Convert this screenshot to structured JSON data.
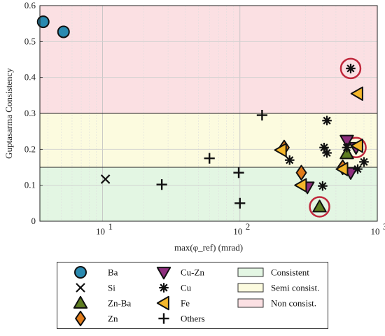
{
  "chart_data": {
    "type": "scatter",
    "xscale": "log",
    "xlim": [
      3.5,
      1000
    ],
    "ylim": [
      0,
      0.6
    ],
    "xlabel": "max(φ_ref) (mrad)",
    "ylabel": "Guptasarma Consistency",
    "x_ticks": [
      {
        "value": 10,
        "base": "10",
        "exp": "1"
      },
      {
        "value": 100,
        "base": "10",
        "exp": "2"
      },
      {
        "value": 1000,
        "base": "10",
        "exp": "3"
      }
    ],
    "y_ticks": [
      {
        "value": 0,
        "label": "0"
      },
      {
        "value": 0.1,
        "label": "0.1"
      },
      {
        "value": 0.2,
        "label": "0.2"
      },
      {
        "value": 0.3,
        "label": "0.3"
      },
      {
        "value": 0.4,
        "label": "0.4"
      },
      {
        "value": 0.5,
        "label": "0.5"
      },
      {
        "value": 0.6,
        "label": "0.6"
      }
    ],
    "grid": true,
    "bands": [
      {
        "name": "Consistent",
        "y0": 0,
        "y1": 0.15,
        "color": "#e3f6e3"
      },
      {
        "name": "Semi consist.",
        "y0": 0.15,
        "y1": 0.3,
        "color": "#fcfbdf"
      },
      {
        "name": "Non consist.",
        "y0": 0.3,
        "y1": 0.6,
        "color": "#fbe0e3"
      }
    ],
    "series": [
      {
        "name": "Ba",
        "marker": "circle",
        "color": "#2a8ab0",
        "points": [
          [
            3.7,
            0.555
          ],
          [
            5.2,
            0.527
          ]
        ]
      },
      {
        "name": "Si",
        "marker": "x",
        "color": "#111111",
        "points": [
          [
            10.5,
            0.117
          ]
        ]
      },
      {
        "name": "Zn-Ba",
        "marker": "triangle-up",
        "color": "#5e7d21",
        "points": [
          [
            380,
            0.04
          ],
          [
            600,
            0.188
          ]
        ]
      },
      {
        "name": "Zn",
        "marker": "diamond",
        "color": "#e07b1a",
        "points": [
          [
            210,
            0.205
          ],
          [
            280,
            0.135
          ],
          [
            560,
            0.15
          ]
        ]
      },
      {
        "name": "Cu-Zn",
        "marker": "triangle-down",
        "color": "#8e2f7e",
        "points": [
          [
            310,
            0.095
          ],
          [
            600,
            0.225
          ],
          [
            640,
            0.135
          ],
          [
            700,
            0.205
          ]
        ]
      },
      {
        "name": "Cu",
        "marker": "asterisk",
        "color": "#111111",
        "points": [
          [
            640,
            0.425
          ],
          [
            430,
            0.28
          ],
          [
            410,
            0.205
          ],
          [
            430,
            0.19
          ],
          [
            230,
            0.17
          ],
          [
            400,
            0.098
          ],
          [
            600,
            0.205
          ],
          [
            720,
            0.145
          ],
          [
            800,
            0.165
          ]
        ]
      },
      {
        "name": "Fe",
        "marker": "triangle-left",
        "color": "#f4b72c",
        "points": [
          [
            720,
            0.355
          ],
          [
            200,
            0.198
          ],
          [
            280,
            0.1
          ],
          [
            560,
            0.145
          ],
          [
            720,
            0.21
          ]
        ]
      },
      {
        "name": "Others",
        "marker": "plus",
        "color": "#111111",
        "points": [
          [
            27,
            0.102
          ],
          [
            60,
            0.175
          ],
          [
            98,
            0.135
          ],
          [
            100,
            0.05
          ],
          [
            145,
            0.295
          ]
        ]
      }
    ],
    "highlighted": [
      [
        640,
        0.425
      ],
      [
        380,
        0.04
      ],
      [
        700,
        0.205
      ]
    ],
    "highlight_color": "#c0283c"
  },
  "legend": {
    "items": [
      {
        "label": "Ba",
        "marker": "circle",
        "color": "#2a8ab0"
      },
      {
        "label": "Si",
        "marker": "x",
        "color": "#111111"
      },
      {
        "label": "Zn-Ba",
        "marker": "triangle-up",
        "color": "#5e7d21"
      },
      {
        "label": "Zn",
        "marker": "diamond",
        "color": "#e07b1a"
      },
      {
        "label": "Cu-Zn",
        "marker": "triangle-down",
        "color": "#8e2f7e"
      },
      {
        "label": "Cu",
        "marker": "asterisk",
        "color": "#111111"
      },
      {
        "label": "Fe",
        "marker": "triangle-left",
        "color": "#f4b72c"
      },
      {
        "label": "Others",
        "marker": "plus",
        "color": "#111111"
      },
      {
        "label": "Consistent",
        "marker": "patch",
        "color": "#e3f6e3"
      },
      {
        "label": "Semi consist.",
        "marker": "patch",
        "color": "#fcfbdf"
      },
      {
        "label": "Non consist.",
        "marker": "patch",
        "color": "#fbe0e3"
      }
    ]
  }
}
